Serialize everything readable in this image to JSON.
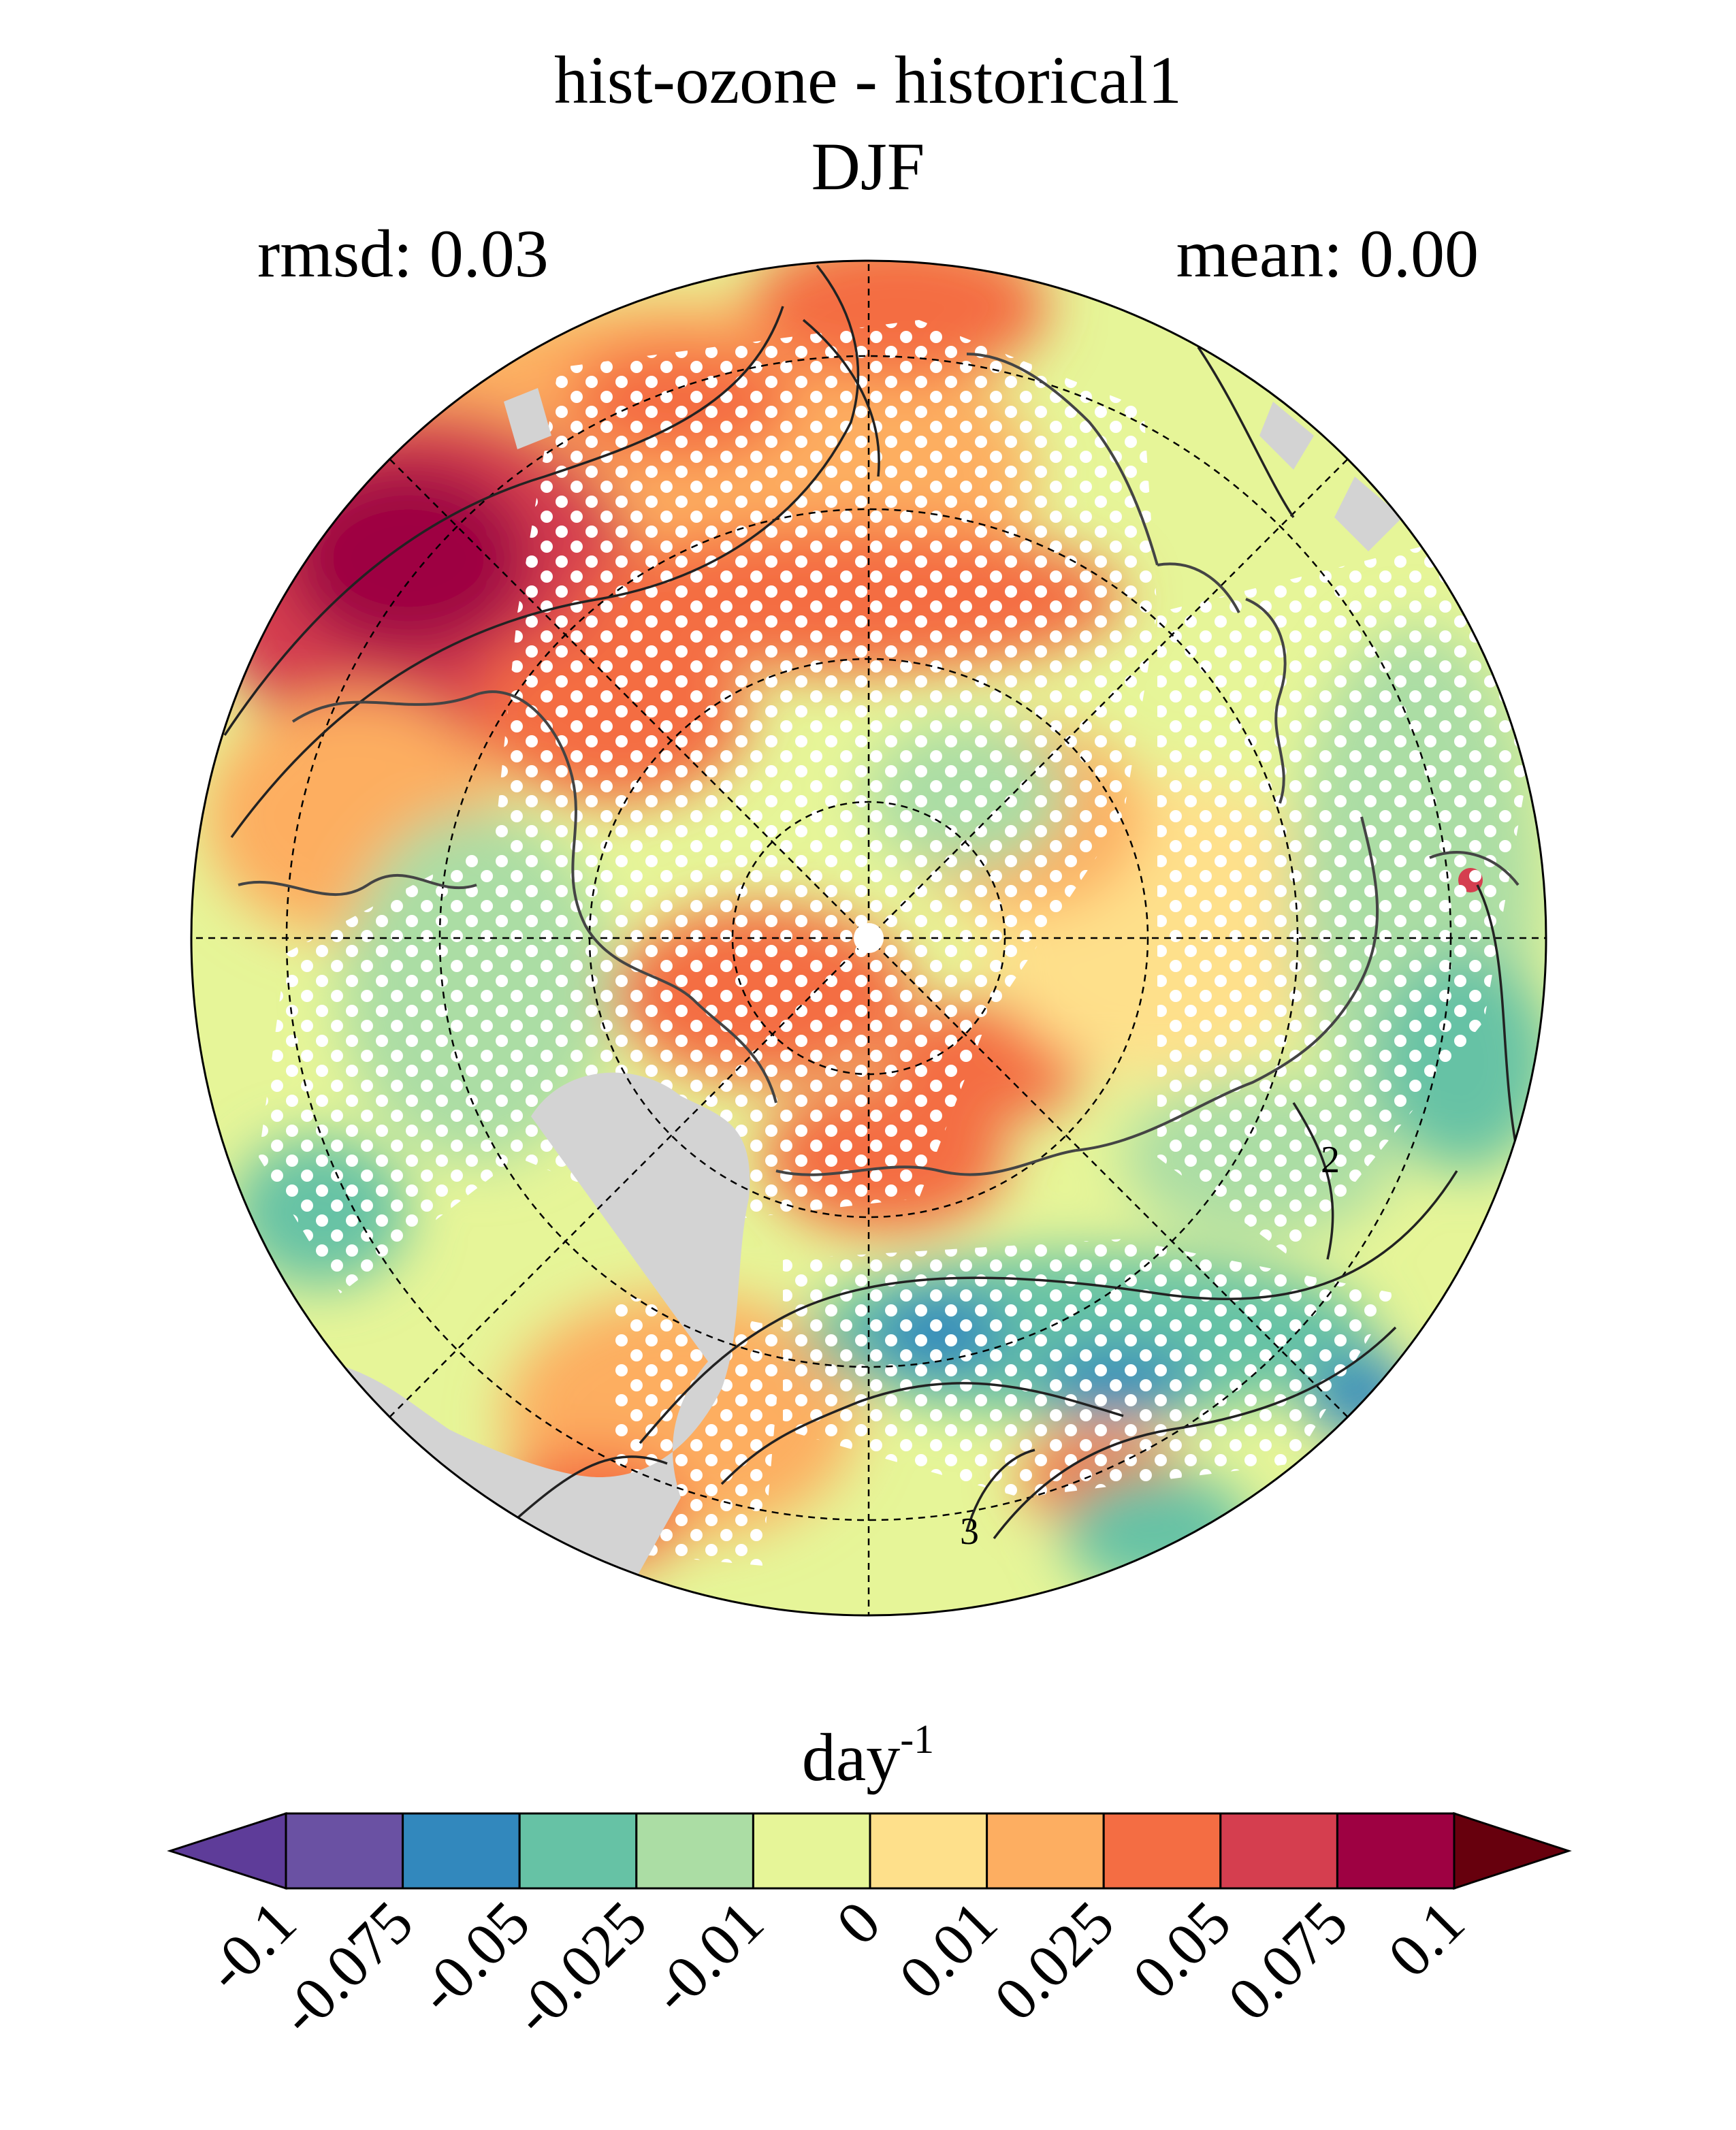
{
  "title": "hist-ozone - historical1",
  "subtitle": "DJF",
  "left_stat": "rmsd: 0.03",
  "right_stat": "mean: 0.00",
  "units": {
    "base": "day",
    "exponent": "-1"
  },
  "colorbar": {
    "ticks": [
      "-0.1",
      "-0.075",
      "-0.05",
      "-0.025",
      "-0.01",
      "0",
      "0.01",
      "0.025",
      "0.05",
      "0.075",
      "0.1"
    ],
    "colors": [
      "#5e3c99",
      "#6a51a3",
      "#3288bd",
      "#66c2a5",
      "#abdda4",
      "#e6f598",
      "#fee08b",
      "#fdae61",
      "#f46d43",
      "#d53e4f",
      "#9e0142",
      "#67000d"
    ]
  },
  "map": {
    "projection": "north-polar-stereographic",
    "land_mask_color": "#d3d3d3",
    "contour_labels": [
      "2",
      "3"
    ]
  }
}
